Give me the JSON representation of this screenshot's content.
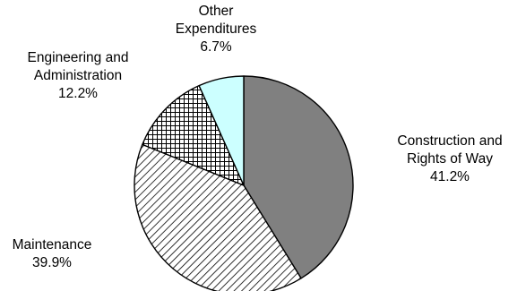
{
  "chart_data": {
    "type": "pie",
    "title": "",
    "start_angle_deg": 0,
    "direction": "clockwise",
    "slices": [
      {
        "label_lines": [
          "Construction and",
          "Rights of Way"
        ],
        "value_label": "41.2%",
        "value": 41.2,
        "fill": "#808080",
        "pattern": "solid"
      },
      {
        "label_lines": [
          "Maintenance"
        ],
        "value_label": "39.9%",
        "value": 39.9,
        "fill": "#ffffff",
        "pattern": "diagonal-hatch"
      },
      {
        "label_lines": [
          "Engineering and",
          "Administration"
        ],
        "value_label": "12.2%",
        "value": 12.2,
        "fill": "#ffffff",
        "pattern": "crosshatch"
      },
      {
        "label_lines": [
          "Other",
          "Expenditures"
        ],
        "value_label": "6.7%",
        "value": 6.7,
        "fill": "#ccffff",
        "pattern": "solid"
      }
    ]
  }
}
